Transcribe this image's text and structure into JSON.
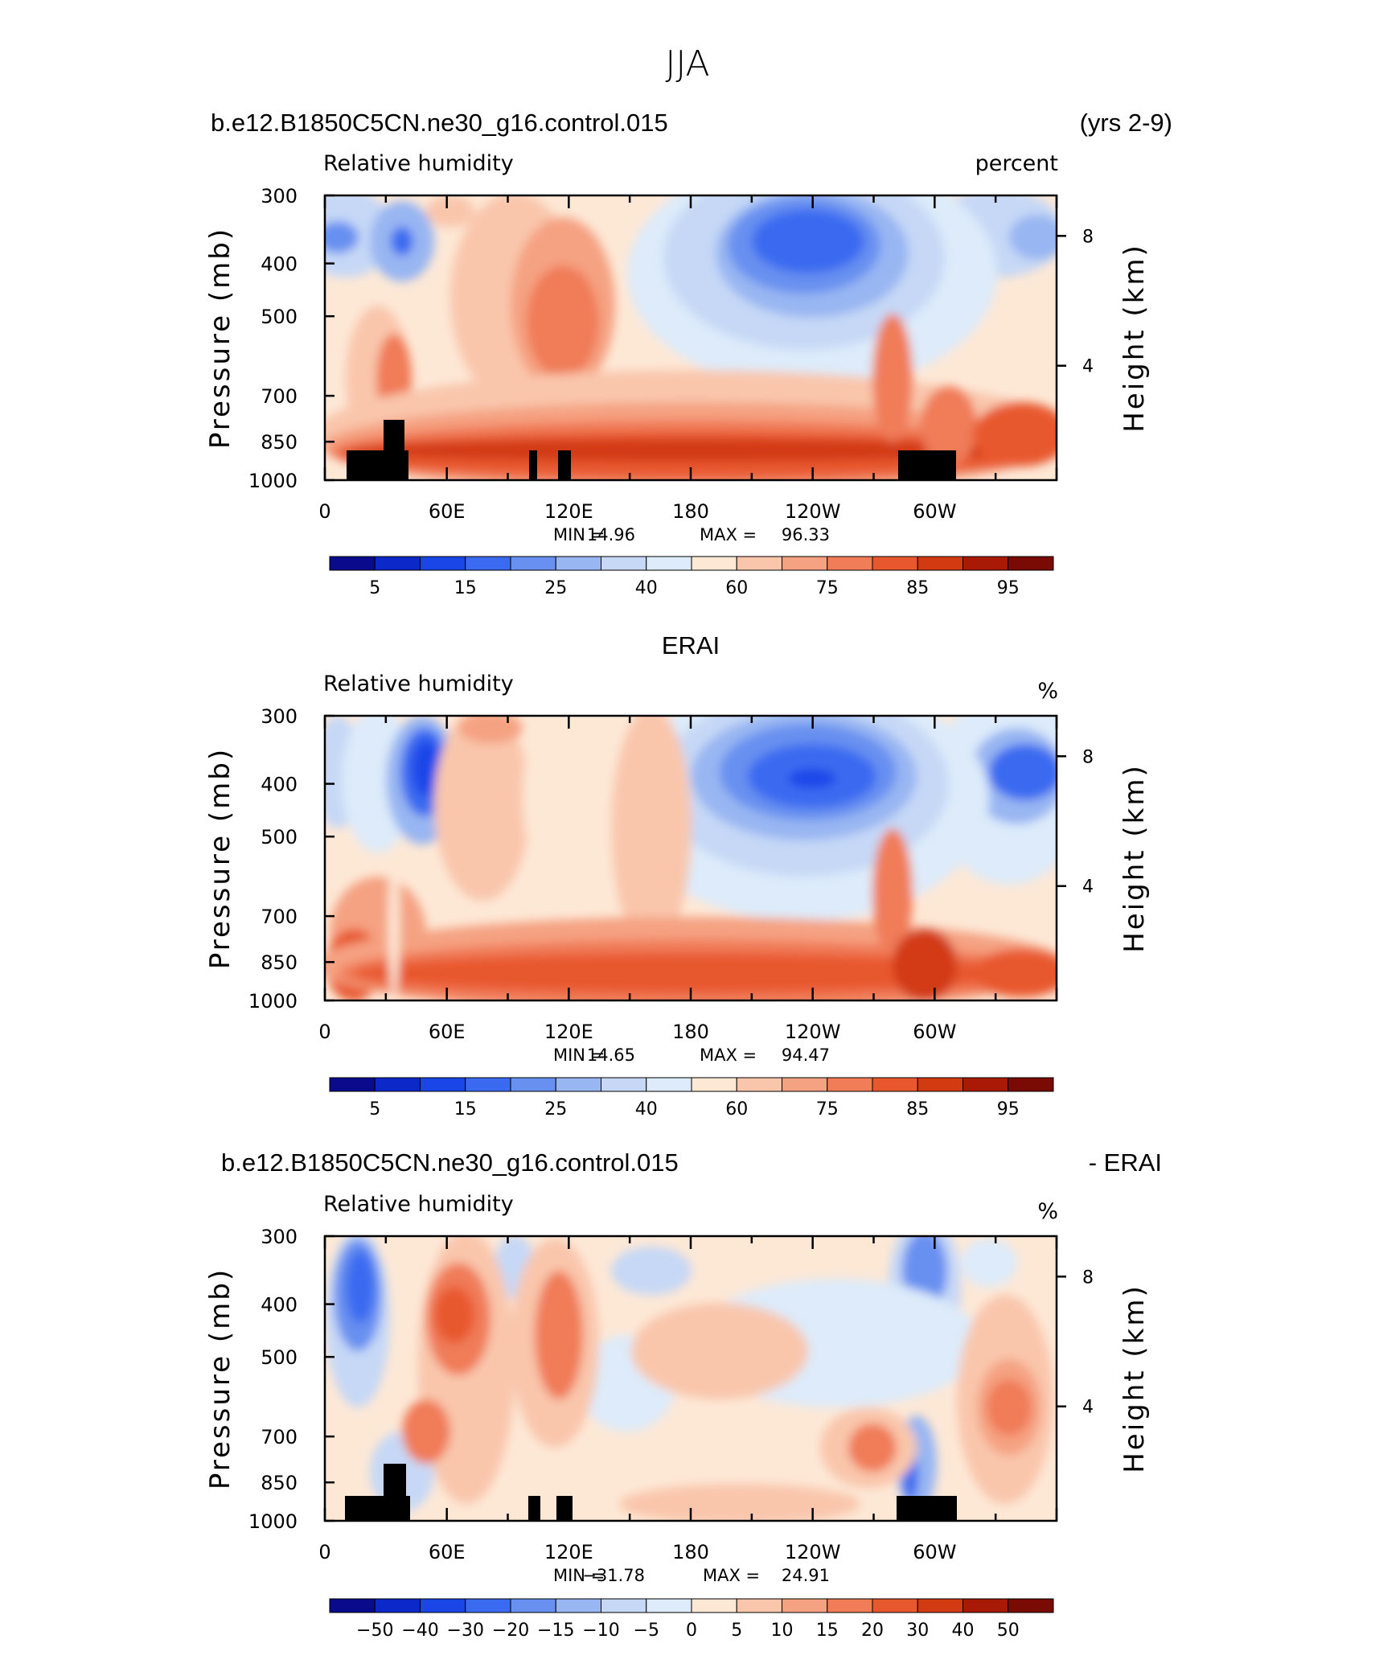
{
  "suptitle": "JJA",
  "panels": [
    {
      "header_left": "b.e12.B1850C5CN.ne30_g16.control.015",
      "header_center": "",
      "header_right": "(yrs 2-9)",
      "left_label": "Relative humidity",
      "right_label": "percent",
      "ylabel": "Pressure (mb)",
      "ylabel_right": "Height (km)",
      "p_ticks": [
        "300",
        "400",
        "500",
        "700",
        "850",
        "1000"
      ],
      "h_ticks": [
        "8",
        "4"
      ],
      "x_ticks": [
        "0",
        "60E",
        "120E",
        "180",
        "120W",
        "60W"
      ],
      "min_label": "MIN =",
      "min_value": "14.96",
      "max_label": "MAX =",
      "max_value": "96.33",
      "colorbar_labels": [
        "5",
        "15",
        "25",
        "40",
        "60",
        "75",
        "85",
        "95"
      ],
      "has_topography": true
    },
    {
      "header_left": "",
      "header_center": "ERAI",
      "header_right": "",
      "left_label": "Relative humidity",
      "right_label": "%",
      "ylabel": "Pressure (mb)",
      "ylabel_right": "Height (km)",
      "p_ticks": [
        "300",
        "400",
        "500",
        "700",
        "850",
        "1000"
      ],
      "h_ticks": [
        "8",
        "4"
      ],
      "x_ticks": [
        "0",
        "60E",
        "120E",
        "180",
        "120W",
        "60W"
      ],
      "min_label": "MIN =",
      "min_value": "14.65",
      "max_label": "MAX =",
      "max_value": "94.47",
      "colorbar_labels": [
        "5",
        "15",
        "25",
        "40",
        "60",
        "75",
        "85",
        "95"
      ],
      "has_topography": false
    },
    {
      "header_left": "b.e12.B1850C5CN.ne30_g16.control.015",
      "header_center": "",
      "header_right": "- ERAI",
      "left_label": "Relative humidity",
      "right_label": "%",
      "ylabel": "Pressure (mb)",
      "ylabel_right": "Height (km)",
      "p_ticks": [
        "300",
        "400",
        "500",
        "700",
        "850",
        "1000"
      ],
      "h_ticks": [
        "8",
        "4"
      ],
      "x_ticks": [
        "0",
        "60E",
        "120E",
        "180",
        "120W",
        "60W"
      ],
      "min_label": "MIN =",
      "min_value": "−31.78",
      "max_label": "MAX =",
      "max_value": "24.91",
      "colorbar_labels": [
        "−50",
        "−40",
        "−30",
        "−20",
        "−15",
        "−10",
        "−5",
        "0",
        "5",
        "10",
        "15",
        "20",
        "30",
        "40",
        "50"
      ],
      "has_topography": true
    }
  ],
  "colors": {
    "abs_scale": [
      "#0a0a8c",
      "#0d28c8",
      "#1a46e8",
      "#3a6af0",
      "#6890f0",
      "#98b6f2",
      "#c6d8f6",
      "#ddebfa",
      "#fde8d6",
      "#f9c6ac",
      "#f5a282",
      "#f07c58",
      "#e8582e",
      "#d23a12",
      "#a81a06",
      "#7a0a04"
    ],
    "diff_scale": [
      "#0a0a8c",
      "#0d28c8",
      "#1a46e8",
      "#3a6af0",
      "#6890f0",
      "#98b6f2",
      "#c6d8f6",
      "#ddebfa",
      "#fde8d6",
      "#f9c6ac",
      "#f5a282",
      "#f07c58",
      "#e8582e",
      "#d23a12",
      "#a81a06",
      "#7a0a04"
    ],
    "topography": "#000000"
  },
  "chart_data": [
    {
      "type": "heatmap",
      "title": "b.e12.B1850C5CN.ne30_g16.control.015",
      "field": "Relative humidity",
      "units": "percent",
      "x": [
        "0",
        "60E",
        "120E",
        "180",
        "120W",
        "60W"
      ],
      "y": [
        300,
        400,
        500,
        700,
        850,
        1000
      ],
      "contour_levels": [
        5,
        10,
        15,
        20,
        25,
        30,
        40,
        50,
        60,
        65,
        70,
        75,
        80,
        85,
        90,
        95
      ],
      "min": 14.96,
      "max": 96.33,
      "features": [
        {
          "lon": 205,
          "p": 450,
          "value": 15
        },
        {
          "lon": 35,
          "p": 430,
          "value": 35
        },
        {
          "lon": 325,
          "p": 430,
          "value": 40
        },
        {
          "lon": 115,
          "p": 570,
          "value": 72
        },
        {
          "lon": 180,
          "p": 930,
          "value": 90
        }
      ]
    },
    {
      "type": "heatmap",
      "title": "ERAI",
      "field": "Relative humidity",
      "units": "%",
      "x": [
        "0",
        "60E",
        "120E",
        "180",
        "120W",
        "60W"
      ],
      "y": [
        300,
        400,
        500,
        700,
        850,
        1000
      ],
      "contour_levels": [
        5,
        10,
        15,
        20,
        25,
        30,
        40,
        50,
        60,
        65,
        70,
        75,
        80,
        85,
        90,
        95
      ],
      "min": 14.65,
      "max": 94.47,
      "features": [
        {
          "lon": 210,
          "p": 440,
          "value": 15
        },
        {
          "lon": 50,
          "p": 420,
          "value": 22
        },
        {
          "lon": 345,
          "p": 430,
          "value": 25
        },
        {
          "lon": 115,
          "p": 560,
          "value": 60
        },
        {
          "lon": 170,
          "p": 930,
          "value": 85
        }
      ]
    },
    {
      "type": "heatmap",
      "title": "b.e12.B1850C5CN.ne30_g16.control.015 - ERAI",
      "field": "Relative humidity",
      "units": "%",
      "x": [
        "0",
        "60E",
        "120E",
        "180",
        "120W",
        "60W"
      ],
      "y": [
        300,
        400,
        500,
        700,
        850,
        1000
      ],
      "contour_levels": [
        -50,
        -40,
        -30,
        -20,
        -15,
        -10,
        -5,
        0,
        5,
        10,
        15,
        20,
        30,
        40,
        50
      ],
      "min": -31.78,
      "max": 24.91,
      "features": [
        {
          "lon": 18,
          "p": 420,
          "value": -28
        },
        {
          "lon": 295,
          "p": 400,
          "value": -25
        },
        {
          "lon": 65,
          "p": 480,
          "value": 22
        },
        {
          "lon": 120,
          "p": 500,
          "value": 20
        },
        {
          "lon": 335,
          "p": 700,
          "value": 22
        },
        {
          "lon": 270,
          "p": 820,
          "value": 15
        }
      ]
    }
  ]
}
